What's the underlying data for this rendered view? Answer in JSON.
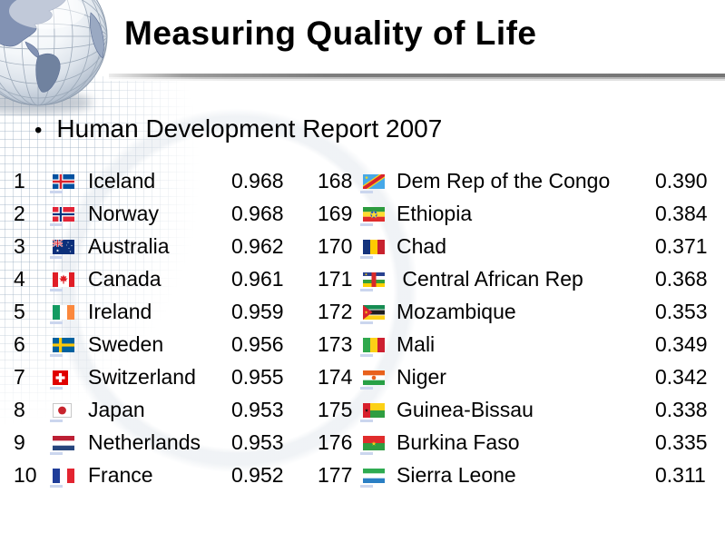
{
  "slide": {
    "title": "Measuring Quality of Life",
    "bullet_glyph": "•",
    "subtitle": "Human Development Report 2007"
  },
  "colors": {
    "title_color": "#000000",
    "divider_gray": "#7d7d7d",
    "texture_blue": "#c6d0da",
    "flag_shadow": "#cbd6ee"
  },
  "table_left": {
    "rows": [
      {
        "rank": "1",
        "flag": "iceland",
        "country": "Iceland",
        "value": "0.968"
      },
      {
        "rank": "2",
        "flag": "norway",
        "country": "Norway",
        "value": "0.968"
      },
      {
        "rank": "3",
        "flag": "australia",
        "country": "Australia",
        "value": "0.962"
      },
      {
        "rank": "4",
        "flag": "canada",
        "country": "Canada",
        "value": "0.961"
      },
      {
        "rank": "5",
        "flag": "ireland",
        "country": "Ireland",
        "value": "0.959"
      },
      {
        "rank": "6",
        "flag": "sweden",
        "country": "Sweden",
        "value": "0.956"
      },
      {
        "rank": "7",
        "flag": "switzerland",
        "country": "Switzerland",
        "value": "0.955"
      },
      {
        "rank": "8",
        "flag": "japan",
        "country": "Japan",
        "value": "0.953"
      },
      {
        "rank": "9",
        "flag": "netherlands",
        "country": "Netherlands",
        "value": "0.953"
      },
      {
        "rank": "10",
        "flag": "france",
        "country": "France",
        "value": "0.952"
      }
    ]
  },
  "table_right": {
    "rows": [
      {
        "rank": "168",
        "flag": "dem-rep-congo",
        "country": "Dem Rep of the Congo",
        "value": "0.390"
      },
      {
        "rank": "169",
        "flag": "ethiopia",
        "country": "Ethiopia",
        "value": "0.384"
      },
      {
        "rank": "170",
        "flag": "chad",
        "country": "Chad",
        "value": "0.371"
      },
      {
        "rank": "171",
        "flag": "central-african-rep",
        "country": " Central African Rep",
        "value": "0.368"
      },
      {
        "rank": "172",
        "flag": "mozambique",
        "country": "Mozambique",
        "value": "0.353"
      },
      {
        "rank": "173",
        "flag": "mali",
        "country": "Mali",
        "value": "0.349"
      },
      {
        "rank": "174",
        "flag": "niger",
        "country": "Niger",
        "value": "0.342"
      },
      {
        "rank": "175",
        "flag": "guinea-bissau",
        "country": "Guinea-Bissau",
        "value": "0.338"
      },
      {
        "rank": "176",
        "flag": "burkina-faso",
        "country": "Burkina Faso",
        "value": "0.335"
      },
      {
        "rank": "177",
        "flag": "sierra-leone",
        "country": "Sierra Leone",
        "value": "0.311"
      }
    ]
  }
}
